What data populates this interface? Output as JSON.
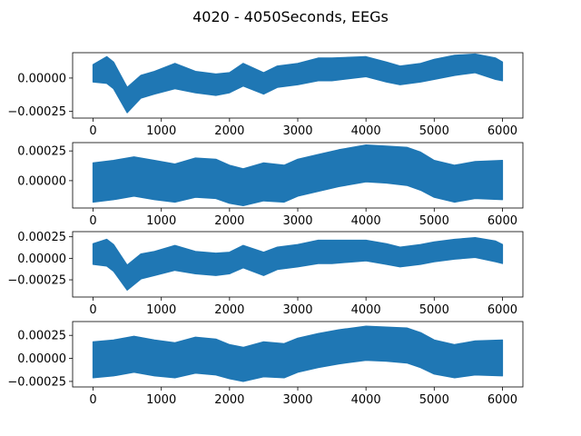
{
  "figure": {
    "title": "4020 - 4050Seconds, EEGs"
  },
  "chart_data": [
    {
      "type": "area",
      "title": "",
      "xlabel": "",
      "ylabel": "",
      "xlim": [
        -300,
        6300
      ],
      "ylim": [
        -0.0003,
        0.00019
      ],
      "xticks": [
        0,
        1000,
        2000,
        3000,
        4000,
        5000,
        6000
      ],
      "xtick_labels": [
        "0",
        "1000",
        "2000",
        "3000",
        "4000",
        "5000",
        "6000"
      ],
      "yticks": [
        0.0,
        -0.00025
      ],
      "ytick_labels": [
        "0.00000",
        "−0.00025"
      ],
      "color": "#1f77b4",
      "series": [
        {
          "x": [
            0,
            200,
            300,
            500,
            700,
            900,
            1200,
            1500,
            1800,
            2000,
            2200,
            2500,
            2700,
            3000,
            3300,
            3500,
            4000,
            4300,
            4500,
            4800,
            5000,
            5300,
            5600,
            5900,
            6000
          ],
          "upper": [
            0.0001,
            0.00016,
            0.00012,
            -7e-05,
            2e-05,
            5e-05,
            0.00011,
            5e-05,
            3e-05,
            4e-05,
            0.00011,
            4e-05,
            9e-05,
            0.00011,
            0.00015,
            0.00015,
            0.00016,
            0.00012,
            9e-05,
            0.00011,
            0.00014,
            0.00017,
            0.00018,
            0.00015,
            0.00012
          ],
          "lower": [
            -3e-05,
            -4e-05,
            -8e-05,
            -0.00026,
            -0.00015,
            -0.00012,
            -8e-05,
            -0.00011,
            -0.00013,
            -0.00011,
            -6e-05,
            -0.00012,
            -7e-05,
            -5e-05,
            -2e-05,
            -2e-05,
            1e-05,
            -3e-05,
            -5e-05,
            -3e-05,
            -1e-05,
            2e-05,
            4e-05,
            -1e-05,
            -2e-05
          ]
        }
      ]
    },
    {
      "type": "area",
      "title": "",
      "xlabel": "",
      "ylabel": "",
      "xlim": [
        -300,
        6300
      ],
      "ylim": [
        -0.00023,
        0.00032
      ],
      "xticks": [
        0,
        1000,
        2000,
        3000,
        4000,
        5000,
        6000
      ],
      "xtick_labels": [
        "0",
        "1000",
        "2000",
        "3000",
        "4000",
        "5000",
        "6000"
      ],
      "yticks": [
        0.00025,
        0.0
      ],
      "ytick_labels": [
        "0.00025",
        "0.00000"
      ],
      "color": "#1f77b4",
      "series": [
        {
          "x": [
            0,
            300,
            600,
            900,
            1200,
            1500,
            1800,
            2000,
            2200,
            2500,
            2800,
            3000,
            3300,
            3600,
            4000,
            4300,
            4600,
            4800,
            5000,
            5300,
            5600,
            6000
          ],
          "upper": [
            0.00015,
            0.00017,
            0.0002,
            0.00017,
            0.00014,
            0.00019,
            0.00018,
            0.00013,
            0.0001,
            0.00015,
            0.00013,
            0.00018,
            0.00022,
            0.00026,
            0.0003,
            0.00029,
            0.00028,
            0.00024,
            0.00017,
            0.00013,
            0.00016,
            0.00017
          ],
          "lower": [
            -0.00018,
            -0.00016,
            -0.00013,
            -0.00016,
            -0.00018,
            -0.00014,
            -0.00015,
            -0.00019,
            -0.00021,
            -0.00017,
            -0.00018,
            -0.00013,
            -9e-05,
            -5e-05,
            -1e-05,
            -2e-05,
            -4e-05,
            -8e-05,
            -0.00014,
            -0.00018,
            -0.00015,
            -0.00016
          ]
        }
      ]
    },
    {
      "type": "area",
      "title": "",
      "xlabel": "",
      "ylabel": "",
      "xlim": [
        -300,
        6300
      ],
      "ylim": [
        -0.00045,
        0.00031
      ],
      "xticks": [
        0,
        1000,
        2000,
        3000,
        4000,
        5000,
        6000
      ],
      "xtick_labels": [
        "0",
        "1000",
        "2000",
        "3000",
        "4000",
        "5000",
        "6000"
      ],
      "yticks": [
        0.00025,
        0.0,
        -0.00025
      ],
      "ytick_labels": [
        "0.00025",
        "0.00000",
        "−0.00025"
      ],
      "color": "#1f77b4",
      "series": [
        {
          "x": [
            0,
            200,
            300,
            500,
            700,
            900,
            1200,
            1500,
            1800,
            2000,
            2200,
            2500,
            2700,
            3000,
            3300,
            3500,
            4000,
            4300,
            4500,
            4800,
            5000,
            5300,
            5600,
            5900,
            6000
          ],
          "upper": [
            0.00017,
            0.00022,
            0.00016,
            -8e-05,
            5e-05,
            8e-05,
            0.00015,
            8e-05,
            6e-05,
            7e-05,
            0.00015,
            7e-05,
            0.00013,
            0.00016,
            0.00021,
            0.00021,
            0.00021,
            0.00017,
            0.00013,
            0.00016,
            0.00019,
            0.00022,
            0.00024,
            0.0002,
            0.00016
          ],
          "lower": [
            -7e-05,
            -9e-05,
            -0.00015,
            -0.00037,
            -0.00024,
            -0.0002,
            -0.00014,
            -0.00018,
            -0.0002,
            -0.00018,
            -0.00011,
            -0.0002,
            -0.00013,
            -0.0001,
            -6e-05,
            -6e-05,
            -3e-05,
            -7e-05,
            -0.0001,
            -7e-05,
            -4e-05,
            -1e-05,
            1e-05,
            -4e-05,
            -6e-05
          ]
        }
      ]
    },
    {
      "type": "area",
      "title": "",
      "xlabel": "",
      "ylabel": "",
      "xlim": [
        -300,
        6300
      ],
      "ylim": [
        -0.00031,
        0.0004
      ],
      "xticks": [
        0,
        1000,
        2000,
        3000,
        4000,
        5000,
        6000
      ],
      "xtick_labels": [
        "0",
        "1000",
        "2000",
        "3000",
        "4000",
        "5000",
        "6000"
      ],
      "yticks": [
        0.00025,
        0.0,
        -0.00025
      ],
      "ytick_labels": [
        "0.00025",
        "0.00000",
        "−0.00025"
      ],
      "color": "#1f77b4",
      "series": [
        {
          "x": [
            0,
            300,
            600,
            900,
            1200,
            1500,
            1800,
            2000,
            2200,
            2500,
            2800,
            3000,
            3300,
            3600,
            4000,
            4300,
            4600,
            4800,
            5000,
            5300,
            5600,
            6000
          ],
          "upper": [
            0.00018,
            0.0002,
            0.00024,
            0.0002,
            0.00017,
            0.00023,
            0.00021,
            0.00015,
            0.00012,
            0.00018,
            0.00016,
            0.00022,
            0.00027,
            0.00031,
            0.00035,
            0.00034,
            0.00033,
            0.00028,
            0.0002,
            0.00015,
            0.00019,
            0.0002
          ],
          "lower": [
            -0.00021,
            -0.00019,
            -0.00015,
            -0.00019,
            -0.00021,
            -0.00016,
            -0.00018,
            -0.00022,
            -0.00025,
            -0.0002,
            -0.00021,
            -0.00015,
            -0.0001,
            -6e-05,
            -2e-05,
            -3e-05,
            -5e-05,
            -0.0001,
            -0.00017,
            -0.00021,
            -0.00018,
            -0.00019
          ]
        }
      ]
    }
  ]
}
